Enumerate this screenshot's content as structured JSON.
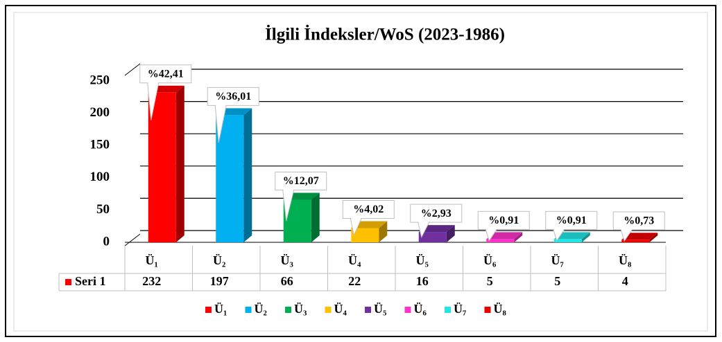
{
  "chart_data": {
    "type": "bar3d",
    "title": "İlgili İndeksler/WoS  (2023-1986)",
    "categories": [
      "Ü₁",
      "Ü₂",
      "Ü₃",
      "Ü₄",
      "Ü₅",
      "Ü₆",
      "Ü₇",
      "Ü₈"
    ],
    "series": [
      {
        "name": "Seri 1",
        "color": "#ff0000",
        "values": [
          232,
          197,
          66,
          22,
          16,
          5,
          5,
          4
        ],
        "value_labels": [
          "%42,41",
          "%36,01",
          "%12,07",
          "%4,02",
          "%2,93",
          "%0,91",
          "%0,91",
          "%0,73"
        ],
        "colors": [
          "#ff0000",
          "#00b0f0",
          "#00b050",
          "#ffc000",
          "#7030a0",
          "#ff33cc",
          "#22e6e6",
          "#ee0000"
        ]
      }
    ],
    "ylim": [
      0,
      250
    ],
    "yticks": [
      0,
      50,
      100,
      150,
      200,
      250
    ],
    "grid": true,
    "data_table": true,
    "legend": "bottom"
  }
}
